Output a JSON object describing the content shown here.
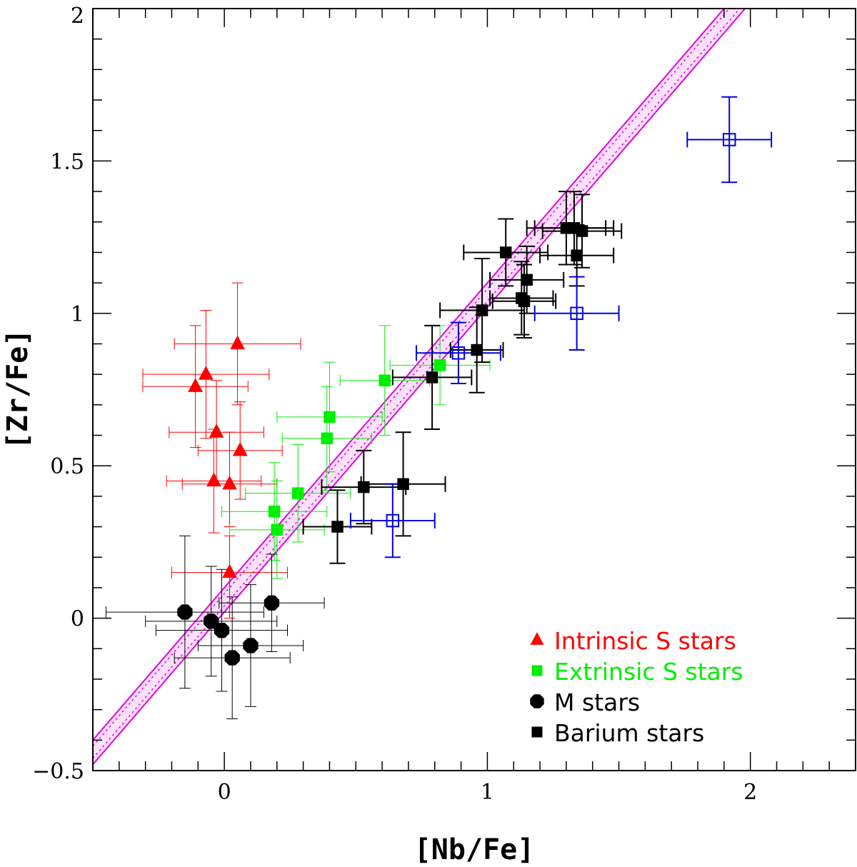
{
  "chart_data": {
    "type": "scatter",
    "xlabel": "[Nb/Fe]",
    "ylabel": "[Zr/Fe]",
    "xlim": [
      -0.5,
      2.4
    ],
    "ylim": [
      -0.5,
      2.0
    ],
    "x_ticks": [
      0,
      1,
      2
    ],
    "x_tick_labels": [
      "0",
      "1",
      "2"
    ],
    "y_ticks": [
      -0.5,
      0,
      0.5,
      1,
      1.5,
      2
    ],
    "y_tick_labels": [
      "−0.5",
      "0",
      "0.5",
      "1",
      "1.5",
      "2"
    ],
    "grid": false,
    "legend_position": "bottom-right",
    "band": {
      "color": "#e600e6",
      "slope": 1,
      "upper_intercept": 0.1,
      "lower_intercept": 0.02
    },
    "series": [
      {
        "name": "Intrinsic S stars",
        "marker": "triangle",
        "color": "#ff0000",
        "points": [
          {
            "x": -0.11,
            "y": 0.76,
            "xerr": 0.2,
            "yerr": 0.2
          },
          {
            "x": -0.07,
            "y": 0.8,
            "xerr": 0.24,
            "yerr": 0.21
          },
          {
            "x": -0.03,
            "y": 0.61,
            "xerr": 0.18,
            "yerr": 0.17
          },
          {
            "x": -0.04,
            "y": 0.45,
            "xerr": 0.18,
            "yerr": 0.17
          },
          {
            "x": 0.02,
            "y": 0.44,
            "xerr": 0.18,
            "yerr": 0.17
          },
          {
            "x": 0.05,
            "y": 0.9,
            "xerr": 0.24,
            "yerr": 0.2
          },
          {
            "x": 0.06,
            "y": 0.55,
            "xerr": 0.16,
            "yerr": 0.16
          },
          {
            "x": 0.02,
            "y": 0.15,
            "xerr": 0.22,
            "yerr": 0.15
          }
        ]
      },
      {
        "name": "Extrinsic S stars",
        "marker": "filled-square",
        "color": "#00ee00",
        "points": [
          {
            "x": 0.19,
            "y": 0.35,
            "xerr": 0.2,
            "yerr": 0.16
          },
          {
            "x": 0.2,
            "y": 0.29,
            "xerr": 0.18,
            "yerr": 0.16
          },
          {
            "x": 0.28,
            "y": 0.41,
            "xerr": 0.2,
            "yerr": 0.16
          },
          {
            "x": 0.39,
            "y": 0.59,
            "xerr": 0.17,
            "yerr": 0.17
          },
          {
            "x": 0.4,
            "y": 0.66,
            "xerr": 0.2,
            "yerr": 0.18
          },
          {
            "x": 0.61,
            "y": 0.78,
            "xerr": 0.17,
            "yerr": 0.18
          },
          {
            "x": 0.82,
            "y": 0.83,
            "xerr": 0.19,
            "yerr": 0.13
          }
        ]
      },
      {
        "name": "M stars",
        "marker": "filled-octagon",
        "color": "#000000",
        "points": [
          {
            "x": -0.15,
            "y": 0.02,
            "xerr": 0.3,
            "yerr": 0.25
          },
          {
            "x": -0.05,
            "y": -0.01,
            "xerr": 0.25,
            "yerr": 0.18
          },
          {
            "x": -0.01,
            "y": -0.04,
            "xerr": 0.25,
            "yerr": 0.2
          },
          {
            "x": 0.03,
            "y": -0.13,
            "xerr": 0.22,
            "yerr": 0.2
          },
          {
            "x": 0.1,
            "y": -0.09,
            "xerr": 0.2,
            "yerr": 0.2
          },
          {
            "x": 0.18,
            "y": 0.05,
            "xerr": 0.2,
            "yerr": 0.16
          }
        ]
      },
      {
        "name": "Barium stars",
        "marker": "filled-square",
        "color": "#000000",
        "points": [
          {
            "x": 0.43,
            "y": 0.3,
            "xerr": 0.13,
            "yerr": 0.12
          },
          {
            "x": 0.53,
            "y": 0.43,
            "xerr": 0.16,
            "yerr": 0.12
          },
          {
            "x": 0.68,
            "y": 0.44,
            "xerr": 0.16,
            "yerr": 0.17
          },
          {
            "x": 0.79,
            "y": 0.79,
            "xerr": 0.15,
            "yerr": 0.17
          },
          {
            "x": 0.96,
            "y": 0.88,
            "xerr": 0.1,
            "yerr": 0.14
          },
          {
            "x": 0.98,
            "y": 1.01,
            "xerr": 0.16,
            "yerr": 0.17
          },
          {
            "x": 1.07,
            "y": 1.2,
            "xerr": 0.16,
            "yerr": 0.11
          },
          {
            "x": 1.13,
            "y": 1.05,
            "xerr": 0.12,
            "yerr": 0.12
          },
          {
            "x": 1.14,
            "y": 1.04,
            "xerr": 0.12,
            "yerr": 0.12
          },
          {
            "x": 1.15,
            "y": 1.11,
            "xerr": 0.14,
            "yerr": 0.11
          },
          {
            "x": 1.3,
            "y": 1.28,
            "xerr": 0.15,
            "yerr": 0.12
          },
          {
            "x": 1.33,
            "y": 1.28,
            "xerr": 0.15,
            "yerr": 0.12
          },
          {
            "x": 1.36,
            "y": 1.27,
            "xerr": 0.15,
            "yerr": 0.12
          },
          {
            "x": 1.34,
            "y": 1.19,
            "xerr": 0.14,
            "yerr": 0.1
          }
        ]
      },
      {
        "name": "",
        "marker": "open-square",
        "color": "#0000dd",
        "points": [
          {
            "x": 0.64,
            "y": 0.32,
            "xerr": 0.16,
            "yerr": 0.12
          },
          {
            "x": 0.89,
            "y": 0.87,
            "xerr": 0.16,
            "yerr": 0.1
          },
          {
            "x": 1.34,
            "y": 1.0,
            "xerr": 0.16,
            "yerr": 0.12
          },
          {
            "x": 1.92,
            "y": 1.57,
            "xerr": 0.16,
            "yerr": 0.14
          }
        ]
      }
    ],
    "legend": [
      {
        "label": "Intrinsic S stars",
        "marker": "triangle",
        "color": "#ff0000",
        "text_color": "#ff0000"
      },
      {
        "label": "Extrinsic S stars",
        "marker": "filled-square",
        "color": "#00ee00",
        "text_color": "#00ee00"
      },
      {
        "label": "M stars",
        "marker": "filled-octagon",
        "color": "#000000",
        "text_color": "#000000"
      },
      {
        "label": "Barium stars",
        "marker": "filled-square",
        "color": "#000000",
        "text_color": "#000000"
      }
    ]
  }
}
